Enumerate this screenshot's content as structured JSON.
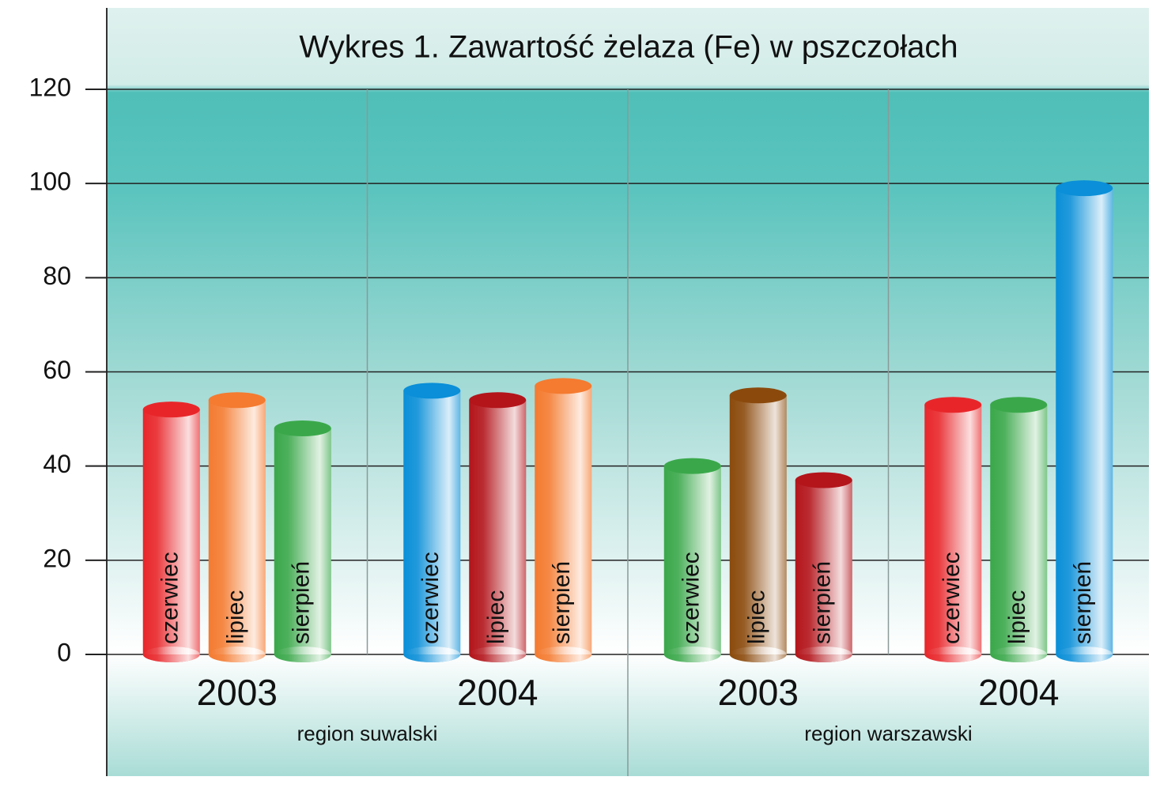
{
  "chart_data": {
    "type": "bar",
    "title": "Wykres 1. Zawartość żelaza (Fe) w pszczołach",
    "categories": [
      "czerwiec",
      "lipiec",
      "sierpień",
      "czerwiec",
      "lipiec",
      "sierpień",
      "czerwiec",
      "lipiec",
      "sierpień",
      "czerwiec",
      "lipiec",
      "sierpień"
    ],
    "values": [
      52,
      54,
      48,
      56,
      54,
      57,
      40,
      55,
      37,
      53,
      53,
      99
    ],
    "colors": [
      "#e8262a",
      "#f47b30",
      "#3aa84a",
      "#0a8fd8",
      "#b3151b",
      "#f47b30",
      "#3aa84a",
      "#8b4a0c",
      "#b3151b",
      "#e8262a",
      "#3aa84a",
      "#0a8fd8"
    ],
    "groups": [
      "2003",
      "2004",
      "2003",
      "2004"
    ],
    "regions": [
      "region suwalski",
      "region warszawski"
    ],
    "ylim": [
      0,
      120
    ],
    "yticks": [
      0,
      20,
      40,
      60,
      80,
      100,
      120
    ],
    "grid": true
  }
}
